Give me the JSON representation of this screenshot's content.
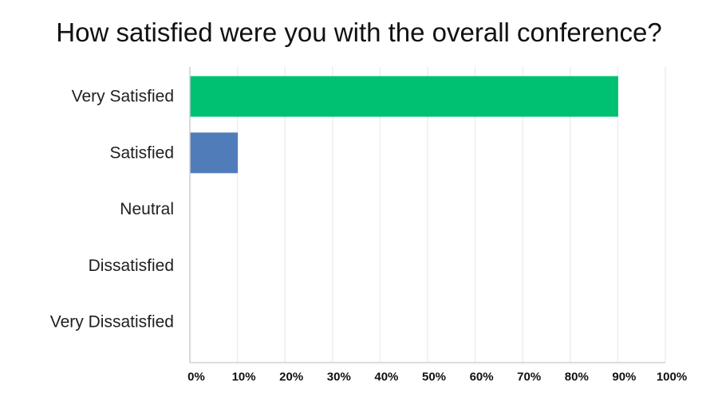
{
  "chart_data": {
    "type": "bar",
    "orientation": "horizontal",
    "title": "How satisfied were you with the overall conference?",
    "categories": [
      "Very Satisfied",
      "Satisfied",
      "Neutral",
      "Dissatisfied",
      "Very Dissatisfied"
    ],
    "values": [
      90,
      10,
      0,
      0,
      0
    ],
    "bar_colors": [
      "#00c071",
      "#507cba",
      "#507cba",
      "#507cba",
      "#507cba"
    ],
    "x_ticks": [
      "0%",
      "10%",
      "20%",
      "30%",
      "40%",
      "50%",
      "60%",
      "70%",
      "80%",
      "90%",
      "100%"
    ],
    "xlim": [
      0,
      100
    ],
    "grid": true,
    "legend": "none",
    "xlabel": "",
    "ylabel": ""
  }
}
